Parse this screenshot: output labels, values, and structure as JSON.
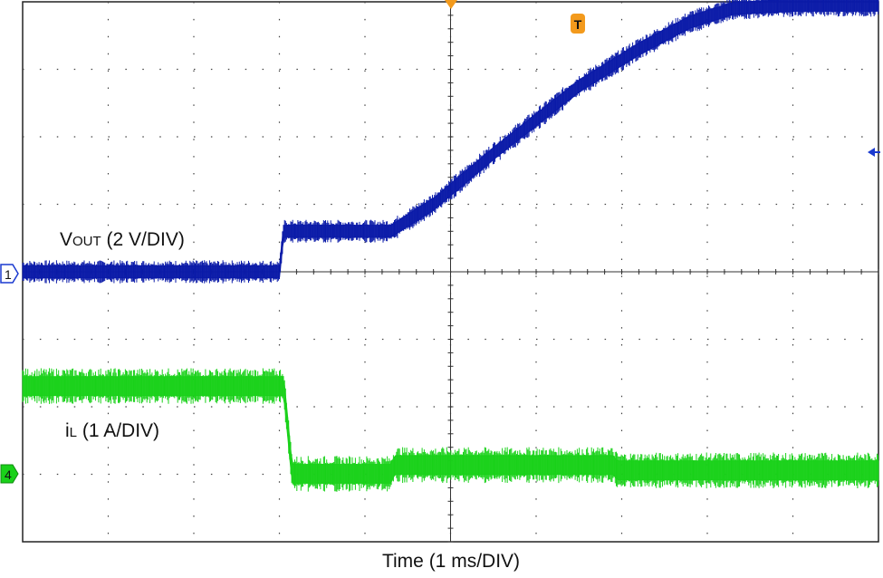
{
  "chart_data": {
    "type": "line",
    "title": "",
    "xlabel": "Time (1 ms/DIV)",
    "x_unit": "ms",
    "x_per_div": 1,
    "grid": true,
    "xlim": [
      0,
      10
    ],
    "series": [
      {
        "name_main": "V",
        "name_sub": "OUT",
        "name_tail": " (2 V/DIV)",
        "unit": "V",
        "per_div": 2,
        "channel_marker": "1",
        "color": "#0a1aa8",
        "band": 0.18,
        "x": [
          0,
          3.0,
          3.05,
          4.3,
          4.8,
          5.5,
          6.5,
          7.2,
          7.8,
          8.3,
          9.0,
          10.0
        ],
        "y": [
          0.0,
          0.0,
          0.6,
          0.6,
          1.0,
          1.75,
          2.75,
          3.3,
          3.7,
          3.9,
          3.95,
          3.95
        ]
      },
      {
        "name_main": "i",
        "name_sub": "L",
        "name_tail": " (1 A/DIV)",
        "unit": "A",
        "per_div": 1,
        "channel_marker": "4",
        "color": "#19d119",
        "band": 0.28,
        "x": [
          0,
          3.05,
          3.15,
          4.3,
          4.35,
          6.9,
          6.95,
          10.0
        ],
        "y": [
          1.3,
          1.3,
          0.0,
          0.0,
          0.13,
          0.13,
          0.05,
          0.05
        ]
      }
    ],
    "trigger_marker": "T"
  }
}
